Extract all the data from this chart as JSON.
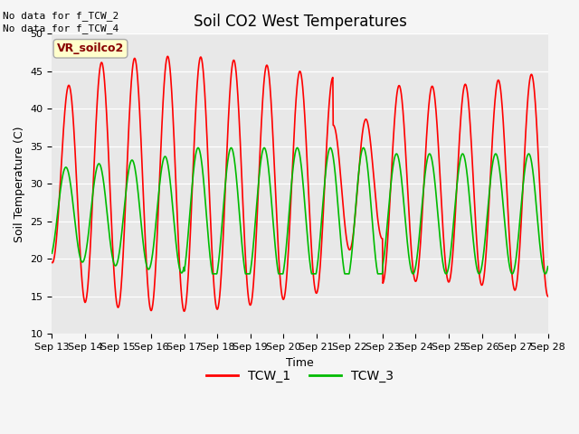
{
  "title": "Soil CO2 West Temperatures",
  "xlabel": "Time",
  "ylabel": "Soil Temperature (C)",
  "ylim": [
    10,
    50
  ],
  "xlim": [
    0,
    15
  ],
  "no_data_text": [
    "No data for f_TCW_2",
    "No data for f_TCW_4"
  ],
  "vr_label": "VR_soilco2",
  "legend_labels": [
    "TCW_1",
    "TCW_3"
  ],
  "legend_colors": [
    "#ff0000",
    "#00bb00"
  ],
  "bg_color": "#e8e8e8",
  "fig_bg_color": "#f5f5f5",
  "xtick_labels": [
    "Sep 13",
    "Sep 14",
    "Sep 15",
    "Sep 16",
    "Sep 17",
    "Sep 18",
    "Sep 19",
    "Sep 20",
    "Sep 21",
    "Sep 22",
    "Sep 23",
    "Sep 24",
    "Sep 25",
    "Sep 26",
    "Sep 27",
    "Sep 28"
  ],
  "ytick_vals": [
    10,
    15,
    20,
    25,
    30,
    35,
    40,
    45,
    50
  ],
  "title_fontsize": 12,
  "label_fontsize": 9,
  "tick_fontsize": 8
}
